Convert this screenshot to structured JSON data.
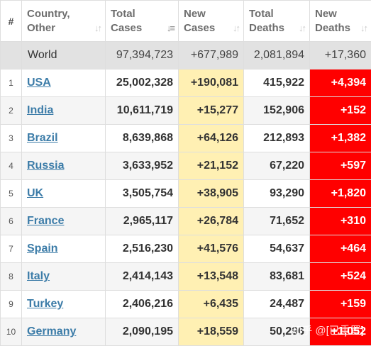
{
  "headers": {
    "num": "#",
    "country_line1": "Country,",
    "country_line2": "Other",
    "total_cases_line1": "Total",
    "total_cases_line2": "Cases",
    "new_cases_line1": "New",
    "new_cases_line2": "Cases",
    "total_deaths_line1": "Total",
    "total_deaths_line2": "Deaths",
    "new_deaths_line1": "New",
    "new_deaths_line2": "Deaths"
  },
  "world": {
    "name": "World",
    "total_cases": "97,394,723",
    "new_cases": "+677,989",
    "total_deaths": "2,081,894",
    "new_deaths": "+17,360"
  },
  "rows": [
    {
      "num": "1",
      "country": "USA",
      "total_cases": "25,002,328",
      "new_cases": "+190,081",
      "total_deaths": "415,922",
      "new_deaths": "+4,394"
    },
    {
      "num": "2",
      "country": "India",
      "total_cases": "10,611,719",
      "new_cases": "+15,277",
      "total_deaths": "152,906",
      "new_deaths": "+152"
    },
    {
      "num": "3",
      "country": "Brazil",
      "total_cases": "8,639,868",
      "new_cases": "+64,126",
      "total_deaths": "212,893",
      "new_deaths": "+1,382"
    },
    {
      "num": "4",
      "country": "Russia",
      "total_cases": "3,633,952",
      "new_cases": "+21,152",
      "total_deaths": "67,220",
      "new_deaths": "+597"
    },
    {
      "num": "5",
      "country": "UK",
      "total_cases": "3,505,754",
      "new_cases": "+38,905",
      "total_deaths": "93,290",
      "new_deaths": "+1,820"
    },
    {
      "num": "6",
      "country": "France",
      "total_cases": "2,965,117",
      "new_cases": "+26,784",
      "total_deaths": "71,652",
      "new_deaths": "+310"
    },
    {
      "num": "7",
      "country": "Spain",
      "total_cases": "2,516,230",
      "new_cases": "+41,576",
      "total_deaths": "54,637",
      "new_deaths": "+464"
    },
    {
      "num": "8",
      "country": "Italy",
      "total_cases": "2,414,143",
      "new_cases": "+13,548",
      "total_deaths": "83,681",
      "new_deaths": "+524"
    },
    {
      "num": "9",
      "country": "Turkey",
      "total_cases": "2,406,216",
      "new_cases": "+6,435",
      "total_deaths": "24,487",
      "new_deaths": "+159"
    },
    {
      "num": "10",
      "country": "Germany",
      "total_cases": "2,090,195",
      "new_cases": "+18,559",
      "total_deaths": "50,296",
      "new_deaths": "+1,052"
    }
  ],
  "watermark": "知乎 @[已重置]",
  "colors": {
    "new_cases_bg": "#fff0b3",
    "new_deaths_bg": "#ff0000",
    "world_bg": "#e2e2e2",
    "link": "#3c7ca8"
  }
}
